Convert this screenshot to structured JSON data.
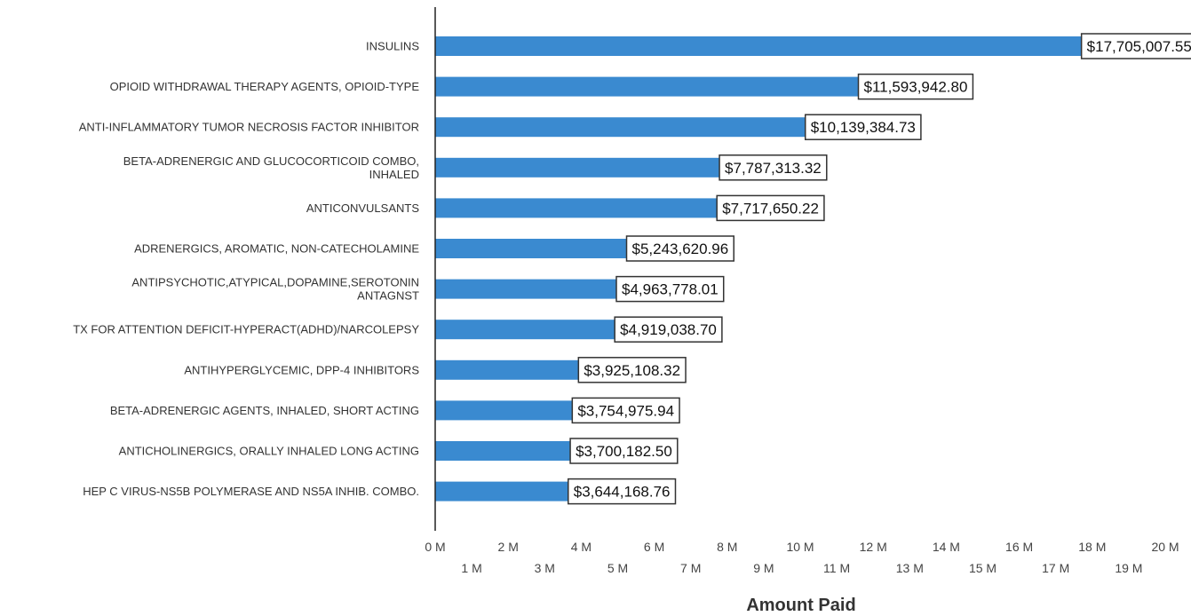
{
  "chart_data": {
    "type": "bar",
    "orientation": "horizontal",
    "categories": [
      [
        "INSULINS"
      ],
      [
        "OPIOID WITHDRAWAL THERAPY AGENTS, OPIOID-TYPE"
      ],
      [
        "ANTI-INFLAMMATORY TUMOR NECROSIS FACTOR INHIBITOR"
      ],
      [
        "BETA-ADRENERGIC AND GLUCOCORTICOID COMBO,",
        "INHALED"
      ],
      [
        "ANTICONVULSANTS"
      ],
      [
        "ADRENERGICS, AROMATIC, NON-CATECHOLAMINE"
      ],
      [
        "ANTIPSYCHOTIC,ATYPICAL,DOPAMINE,SEROTONIN",
        "ANTAGNST"
      ],
      [
        "TX FOR ATTENTION DEFICIT-HYPERACT(ADHD)/NARCOLEPSY"
      ],
      [
        "ANTIHYPERGLYCEMIC, DPP-4 INHIBITORS"
      ],
      [
        "BETA-ADRENERGIC AGENTS, INHALED, SHORT ACTING"
      ],
      [
        "ANTICHOLINERGICS, ORALLY INHALED LONG ACTING"
      ],
      [
        "HEP C VIRUS-NS5B POLYMERASE AND NS5A INHIB. COMBO."
      ]
    ],
    "values": [
      17705007.55,
      11593942.8,
      10139384.73,
      7787313.32,
      7717650.22,
      5243620.96,
      4963778.01,
      4919038.7,
      3925108.32,
      3754975.94,
      3700182.5,
      3644168.76
    ],
    "data_labels": [
      "$17,705,007.55",
      "$11,593,942.80",
      "$10,139,384.73",
      "$7,787,313.32",
      "$7,717,650.22",
      "$5,243,620.96",
      "$4,963,778.01",
      "$4,919,038.70",
      "$3,925,108.32",
      "$3,754,975.94",
      "$3,700,182.50",
      "$3,644,168.76"
    ],
    "xlim": [
      0,
      20000000
    ],
    "x_ticks": [
      {
        "value": 0,
        "label": "0 M"
      },
      {
        "value": 1000000,
        "label": "1 M"
      },
      {
        "value": 2000000,
        "label": "2 M"
      },
      {
        "value": 3000000,
        "label": "3 M"
      },
      {
        "value": 4000000,
        "label": "4 M"
      },
      {
        "value": 5000000,
        "label": "5 M"
      },
      {
        "value": 6000000,
        "label": "6 M"
      },
      {
        "value": 7000000,
        "label": "7 M"
      },
      {
        "value": 8000000,
        "label": "8 M"
      },
      {
        "value": 9000000,
        "label": "9 M"
      },
      {
        "value": 10000000,
        "label": "10 M"
      },
      {
        "value": 11000000,
        "label": "11 M"
      },
      {
        "value": 12000000,
        "label": "12 M"
      },
      {
        "value": 13000000,
        "label": "13 M"
      },
      {
        "value": 14000000,
        "label": "14 M"
      },
      {
        "value": 15000000,
        "label": "15 M"
      },
      {
        "value": 16000000,
        "label": "16 M"
      },
      {
        "value": 17000000,
        "label": "17 M"
      },
      {
        "value": 18000000,
        "label": "18 M"
      },
      {
        "value": 19000000,
        "label": "19 M"
      },
      {
        "value": 20000000,
        "label": "20 M"
      }
    ],
    "xlabel": "Amount Paid",
    "ylabel": "",
    "title": "",
    "grid": false,
    "colors": {
      "bar": "#3a8ad0",
      "axis": "#222222",
      "label_box_stroke": "#333333"
    }
  }
}
